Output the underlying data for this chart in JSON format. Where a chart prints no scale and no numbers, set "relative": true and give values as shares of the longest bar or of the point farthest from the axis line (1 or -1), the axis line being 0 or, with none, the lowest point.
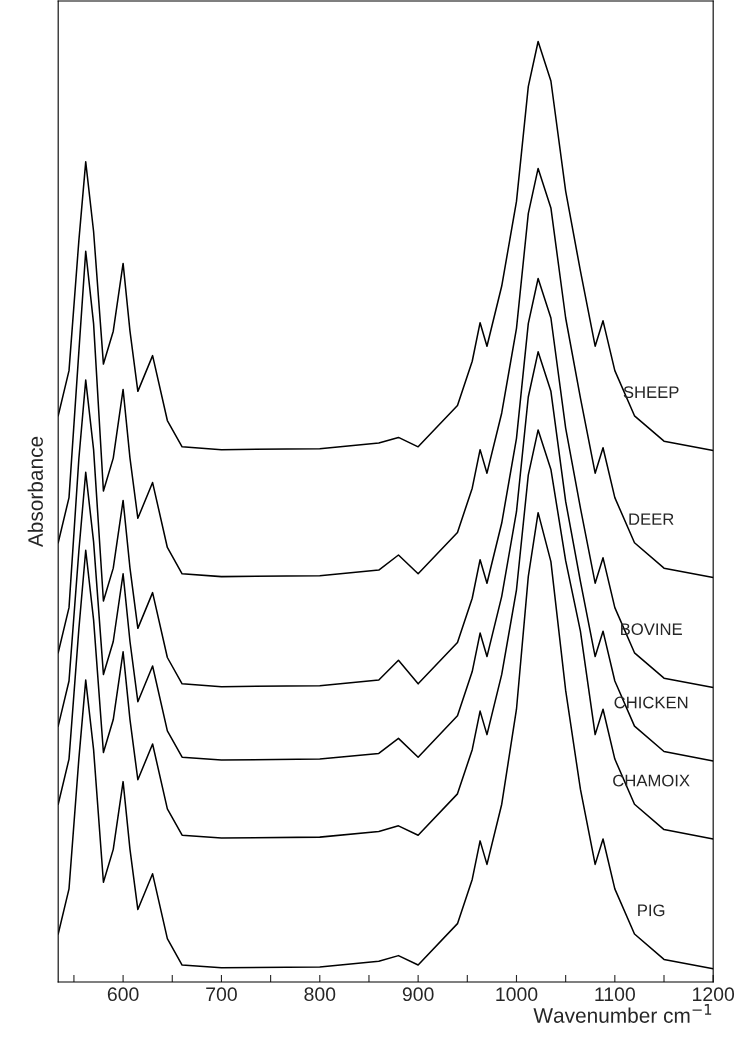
{
  "chart_data": {
    "type": "line",
    "relative": true,
    "xlabel": "Wavenumber cm$^{−1}$",
    "ylabel": "Absorbance",
    "xlim": [
      534,
      1200
    ],
    "xticks": [
      {
        "value": 550,
        "label": null
      },
      600,
      {
        "value": 650,
        "label": null
      },
      700,
      {
        "value": 750,
        "label": null
      },
      800,
      {
        "value": 850,
        "label": null
      },
      900,
      {
        "value": 950,
        "label": null
      },
      1000,
      {
        "value": 1050,
        "label": null
      },
      1100,
      {
        "value": 1150,
        "label": null
      },
      1200
    ],
    "x": [
      534,
      545,
      555,
      562,
      570,
      580,
      590,
      600,
      607,
      615,
      630,
      645,
      660,
      700,
      800,
      860,
      880,
      900,
      940,
      955,
      963,
      970,
      985,
      1000,
      1012,
      1022,
      1035,
      1050,
      1065,
      1080,
      1088,
      1100,
      1120,
      1150,
      1200
    ],
    "series": [
      {
        "name": "SHEEP",
        "color": "#000000",
        "values": [
          0.602,
          0.65,
          0.788,
          0.872,
          0.798,
          0.657,
          0.692,
          0.764,
          0.692,
          0.628,
          0.666,
          0.597,
          0.569,
          0.566,
          0.567,
          0.573,
          0.579,
          0.569,
          0.613,
          0.66,
          0.701,
          0.676,
          0.74,
          0.83,
          0.952,
          1.0,
          0.958,
          0.841,
          0.756,
          0.676,
          0.703,
          0.65,
          0.602,
          0.575,
          0.565
        ]
      },
      {
        "name": "DEER",
        "color": "#000000",
        "values": [
          0.467,
          0.515,
          0.67,
          0.777,
          0.7,
          0.522,
          0.557,
          0.63,
          0.557,
          0.493,
          0.531,
          0.462,
          0.434,
          0.431,
          0.432,
          0.438,
          0.454,
          0.434,
          0.478,
          0.525,
          0.566,
          0.541,
          0.605,
          0.695,
          0.817,
          0.865,
          0.823,
          0.706,
          0.621,
          0.541,
          0.568,
          0.515,
          0.467,
          0.44,
          0.43
        ]
      },
      {
        "name": "BOVINE",
        "color": "#000000",
        "values": [
          0.35,
          0.398,
          0.556,
          0.64,
          0.566,
          0.405,
          0.44,
          0.512,
          0.44,
          0.376,
          0.414,
          0.345,
          0.317,
          0.314,
          0.315,
          0.321,
          0.342,
          0.317,
          0.361,
          0.408,
          0.449,
          0.424,
          0.488,
          0.578,
          0.7,
          0.748,
          0.706,
          0.589,
          0.504,
          0.424,
          0.451,
          0.398,
          0.35,
          0.323,
          0.313
        ]
      },
      {
        "name": "CHICKEN",
        "color": "#000000",
        "values": [
          0.272,
          0.32,
          0.458,
          0.542,
          0.468,
          0.327,
          0.362,
          0.434,
          0.362,
          0.298,
          0.336,
          0.267,
          0.239,
          0.236,
          0.237,
          0.243,
          0.259,
          0.239,
          0.283,
          0.33,
          0.371,
          0.346,
          0.41,
          0.5,
          0.622,
          0.67,
          0.628,
          0.511,
          0.426,
          0.346,
          0.373,
          0.32,
          0.272,
          0.245,
          0.235
        ]
      },
      {
        "name": "CHAMOIX",
        "color": "#000000",
        "values": [
          0.189,
          0.237,
          0.375,
          0.459,
          0.385,
          0.244,
          0.279,
          0.351,
          0.279,
          0.215,
          0.253,
          0.184,
          0.156,
          0.153,
          0.154,
          0.16,
          0.166,
          0.156,
          0.2,
          0.247,
          0.288,
          0.263,
          0.327,
          0.417,
          0.539,
          0.587,
          0.545,
          0.448,
          0.373,
          0.263,
          0.29,
          0.237,
          0.189,
          0.162,
          0.152
        ]
      },
      {
        "name": "PIG",
        "color": "#000000",
        "values": [
          0.051,
          0.099,
          0.237,
          0.321,
          0.247,
          0.106,
          0.141,
          0.213,
          0.141,
          0.077,
          0.115,
          0.046,
          0.018,
          0.015,
          0.016,
          0.022,
          0.028,
          0.018,
          0.062,
          0.109,
          0.15,
          0.125,
          0.189,
          0.29,
          0.431,
          0.499,
          0.447,
          0.31,
          0.205,
          0.125,
          0.152,
          0.099,
          0.051,
          0.024,
          0.014
        ]
      }
    ]
  }
}
